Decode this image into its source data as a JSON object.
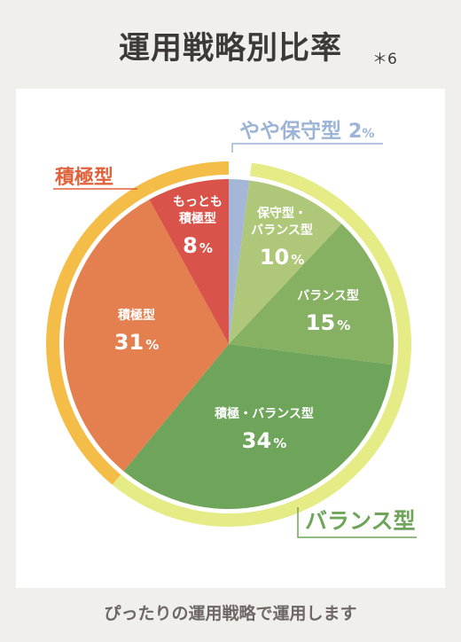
{
  "header": {
    "title": "運用戦略別比率",
    "footnote": "＊6"
  },
  "caption": "ぴったりの運用戦略で運用します",
  "colors": {
    "yaya_hoshu": "#a4b7d6",
    "hoshu_balance": "#aec778",
    "balance": "#86b062",
    "sekkyoku_balance": "#6ea55a",
    "sekkyoku": "#e47f50",
    "motto_sekkyoku": "#d9534a",
    "ring_balance": "#e5eb85",
    "ring_sekkyoku": "#f4bd47",
    "label_blue": "#9cb4d6",
    "label_green": "#6ea55a",
    "label_orange": "#e0623a"
  },
  "chart_data": {
    "type": "pie",
    "unit": "%",
    "slices": [
      {
        "label": "やや保守型",
        "value": 2,
        "color": "#a4b7d6"
      },
      {
        "label": "保守型・\nバランス型",
        "value": 10,
        "color": "#aec778"
      },
      {
        "label": "バランス型",
        "value": 15,
        "color": "#86b062"
      },
      {
        "label": "積極・バランス型",
        "value": 34,
        "color": "#6ea55a"
      },
      {
        "label": "積極型",
        "value": 31,
        "color": "#e47f50"
      },
      {
        "label": "もっとも\n積極型",
        "value": 8,
        "color": "#d9534a"
      }
    ],
    "groups": [
      {
        "label": "バランス型",
        "from_slice": 1,
        "to_slice": 3,
        "color": "#e5eb85"
      },
      {
        "label": "積極型",
        "from_slice": 4,
        "to_slice": 5,
        "color": "#f4bd47"
      }
    ],
    "callouts": [
      {
        "label": "やや保守型 2%",
        "slice": 0
      },
      {
        "label": "積極型",
        "group": 1
      },
      {
        "label": "バランス型",
        "group": 0
      }
    ]
  }
}
